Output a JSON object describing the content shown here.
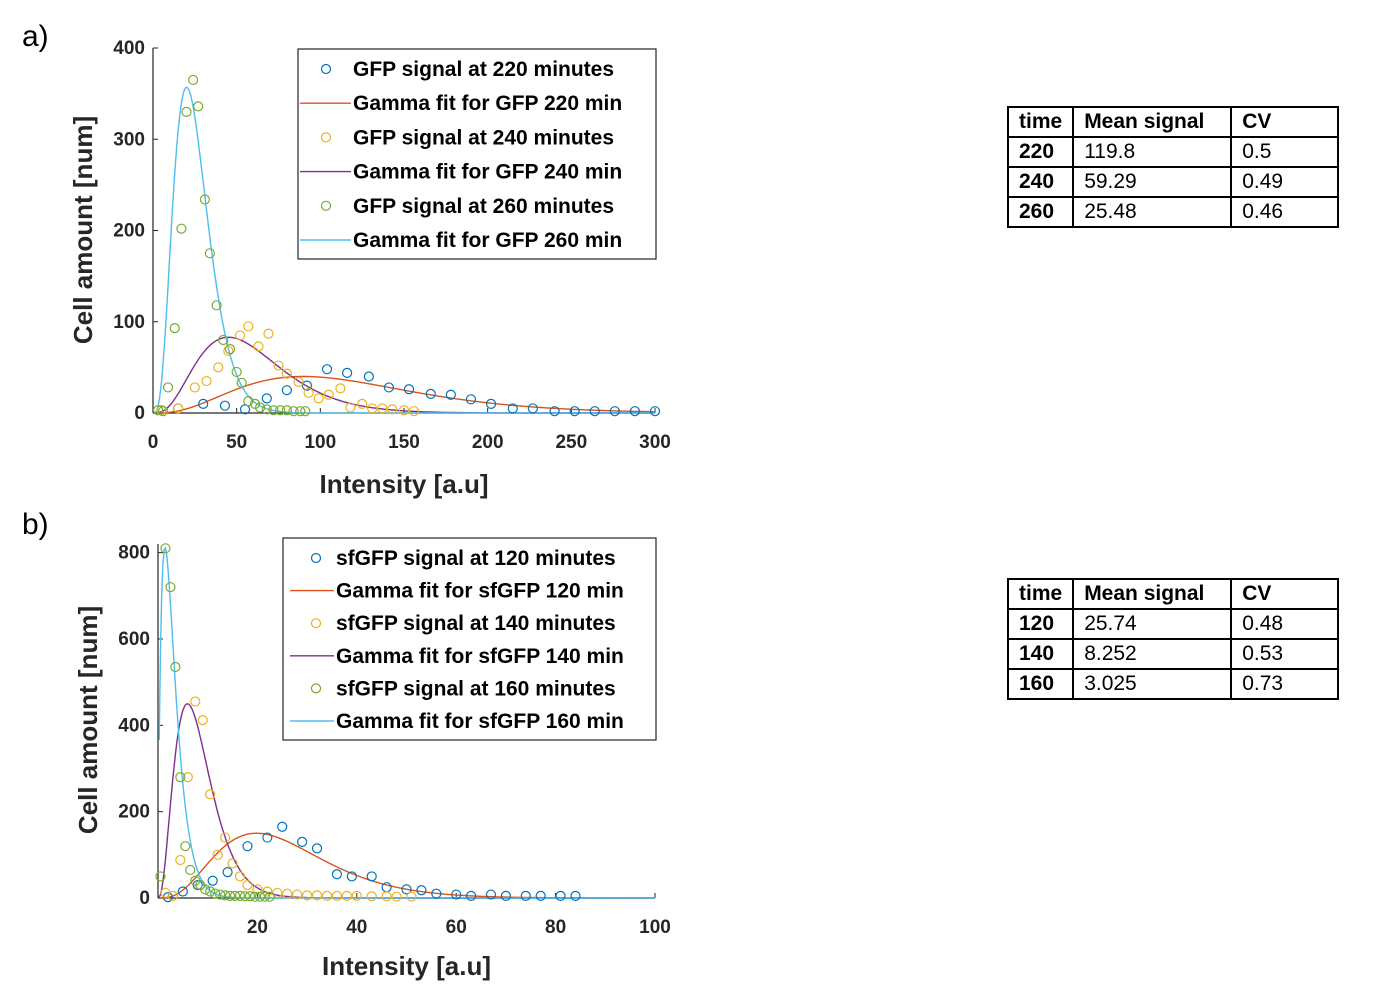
{
  "panel_a_label": "a)",
  "panel_b_label": "b)",
  "chart_data": [
    {
      "type": "scatter",
      "title": "",
      "xlabel": "Intensity [a.u]",
      "ylabel": "Cell amount [num]",
      "xlim": [
        0,
        300
      ],
      "ylim": [
        0,
        400
      ],
      "xticks": [
        0,
        50,
        100,
        150,
        200,
        250,
        300
      ],
      "yticks": [
        0,
        100,
        200,
        300,
        400
      ],
      "grid": false,
      "legend_position": "top-right",
      "series": [
        {
          "name": "GFP signal at 220 minutes",
          "kind": "markers",
          "color": "#0072BD",
          "x": [
            5,
            15,
            30,
            43,
            55,
            68,
            80,
            92,
            104,
            116,
            129,
            141,
            153,
            166,
            178,
            190,
            202,
            215,
            227,
            240,
            252,
            264,
            276,
            288,
            300
          ],
          "y": [
            3,
            5,
            10,
            8,
            4,
            16,
            25,
            30,
            48,
            44,
            40,
            28,
            26,
            21,
            20,
            15,
            10,
            5,
            5,
            2,
            2,
            2,
            2,
            2,
            2
          ]
        },
        {
          "name": "Gamma fit for GFP 220 min",
          "kind": "line",
          "color": "#D95319",
          "mean": 119.8,
          "cv": 0.5,
          "peak": 40
        },
        {
          "name": "GFP signal at 240 minutes",
          "kind": "markers",
          "color": "#EDB120",
          "x": [
            5,
            15,
            25,
            32,
            39,
            45,
            52,
            57,
            63,
            69,
            75,
            80,
            87,
            93,
            99,
            105,
            112,
            118,
            125,
            131,
            137,
            143,
            150,
            156
          ],
          "y": [
            3,
            5,
            28,
            35,
            50,
            68,
            85,
            95,
            73,
            87,
            52,
            43,
            34,
            22,
            16,
            20,
            27,
            6,
            10,
            5,
            5,
            4,
            3,
            2
          ]
        },
        {
          "name": "Gamma fit for GFP 240 min",
          "kind": "line",
          "color": "#7E2F8E",
          "mean": 59.29,
          "cv": 0.49,
          "peak": 83
        },
        {
          "name": "GFP signal at 260 minutes",
          "kind": "markers",
          "color": "#77AC30",
          "x": [
            3,
            6,
            9,
            13,
            17,
            20,
            24,
            27,
            31,
            34,
            38,
            42,
            46,
            50,
            53,
            57,
            61,
            64,
            68,
            72,
            76,
            80,
            84,
            88,
            91
          ],
          "y": [
            3,
            2,
            28,
            93,
            202,
            330,
            365,
            336,
            234,
            175,
            118,
            80,
            70,
            45,
            33,
            13,
            10,
            6,
            4,
            3,
            3,
            3,
            2,
            2,
            2
          ]
        },
        {
          "name": "Gamma fit for GFP 260 min",
          "kind": "line",
          "color": "#4DBEEE",
          "mean": 25.48,
          "cv": 0.46,
          "peak": 357
        }
      ]
    },
    {
      "type": "scatter",
      "title": "",
      "xlabel": "Intensity [a.u]",
      "ylabel": "Cell amount [num]",
      "xlim": [
        0,
        100
      ],
      "ylim": [
        0,
        820
      ],
      "xticks": [
        20,
        40,
        60,
        80,
        100
      ],
      "yticks": [
        0,
        200,
        400,
        600,
        800
      ],
      "grid": false,
      "legend_position": "top-right",
      "series": [
        {
          "name": "sfGFP signal at 120 minutes",
          "kind": "markers",
          "color": "#0072BD",
          "x": [
            2,
            5,
            8,
            11,
            14,
            18,
            22,
            25,
            29,
            32,
            36,
            39,
            43,
            46,
            50,
            53,
            56,
            60,
            63,
            67,
            70,
            74,
            77,
            81,
            84
          ],
          "y": [
            2,
            15,
            30,
            40,
            60,
            120,
            140,
            165,
            130,
            115,
            55,
            50,
            50,
            25,
            20,
            18,
            10,
            8,
            5,
            8,
            5,
            5,
            5,
            5,
            5
          ]
        },
        {
          "name": "Gamma fit for sfGFP 120 min",
          "kind": "line",
          "color": "#D95319",
          "mean": 25.74,
          "cv": 0.48,
          "peak": 150
        },
        {
          "name": "sfGFP signal at 140 minutes",
          "kind": "markers",
          "color": "#EDB120",
          "x": [
            1.5,
            3,
            4.5,
            6,
            7.5,
            9,
            10.5,
            12,
            13.5,
            15,
            16.5,
            18,
            20,
            22,
            24,
            26,
            28,
            30,
            32,
            34,
            36,
            38,
            40,
            43,
            46,
            48,
            51
          ],
          "y": [
            12,
            5,
            88,
            280,
            455,
            412,
            240,
            100,
            140,
            80,
            50,
            30,
            20,
            15,
            12,
            10,
            8,
            6,
            6,
            5,
            5,
            5,
            5,
            4,
            4,
            3,
            3
          ]
        },
        {
          "name": "Gamma fit for sfGFP 140 min",
          "kind": "line",
          "color": "#7E2F8E",
          "mean": 8.252,
          "cv": 0.53,
          "peak": 450
        },
        {
          "name": "sfGFP signal at 160 minutes",
          "kind": "markers",
          "color": "#77AC30",
          "x": [
            0.5,
            1.5,
            2.5,
            3.5,
            4.5,
            5.5,
            6.5,
            7.5,
            8.5,
            9.5,
            10.5,
            11.5,
            12.5,
            13.5,
            14.5,
            15.5,
            16.5,
            17.5,
            18.5,
            19.5,
            20.5,
            21.5,
            22.5
          ],
          "y": [
            50,
            810,
            720,
            535,
            280,
            120,
            65,
            40,
            30,
            20,
            15,
            10,
            8,
            6,
            5,
            5,
            5,
            4,
            4,
            3,
            3,
            3,
            3
          ]
        },
        {
          "name": "Gamma fit for sfGFP 160 min",
          "kind": "line",
          "color": "#4DBEEE",
          "mean": 3.025,
          "cv": 0.73,
          "peak": 812
        }
      ]
    }
  ],
  "table_a": {
    "headers": [
      "time",
      "Mean signal",
      "CV"
    ],
    "rows": [
      [
        "220",
        "119.8",
        "0.5"
      ],
      [
        "240",
        "59.29",
        "0.49"
      ],
      [
        "260",
        "25.48",
        "0.46"
      ]
    ]
  },
  "table_b": {
    "headers": [
      "time",
      "Mean signal",
      "CV"
    ],
    "rows": [
      [
        "120",
        "25.74",
        "0.48"
      ],
      [
        "140",
        "8.252",
        "0.53"
      ],
      [
        "160",
        "3.025",
        "0.73"
      ]
    ]
  }
}
